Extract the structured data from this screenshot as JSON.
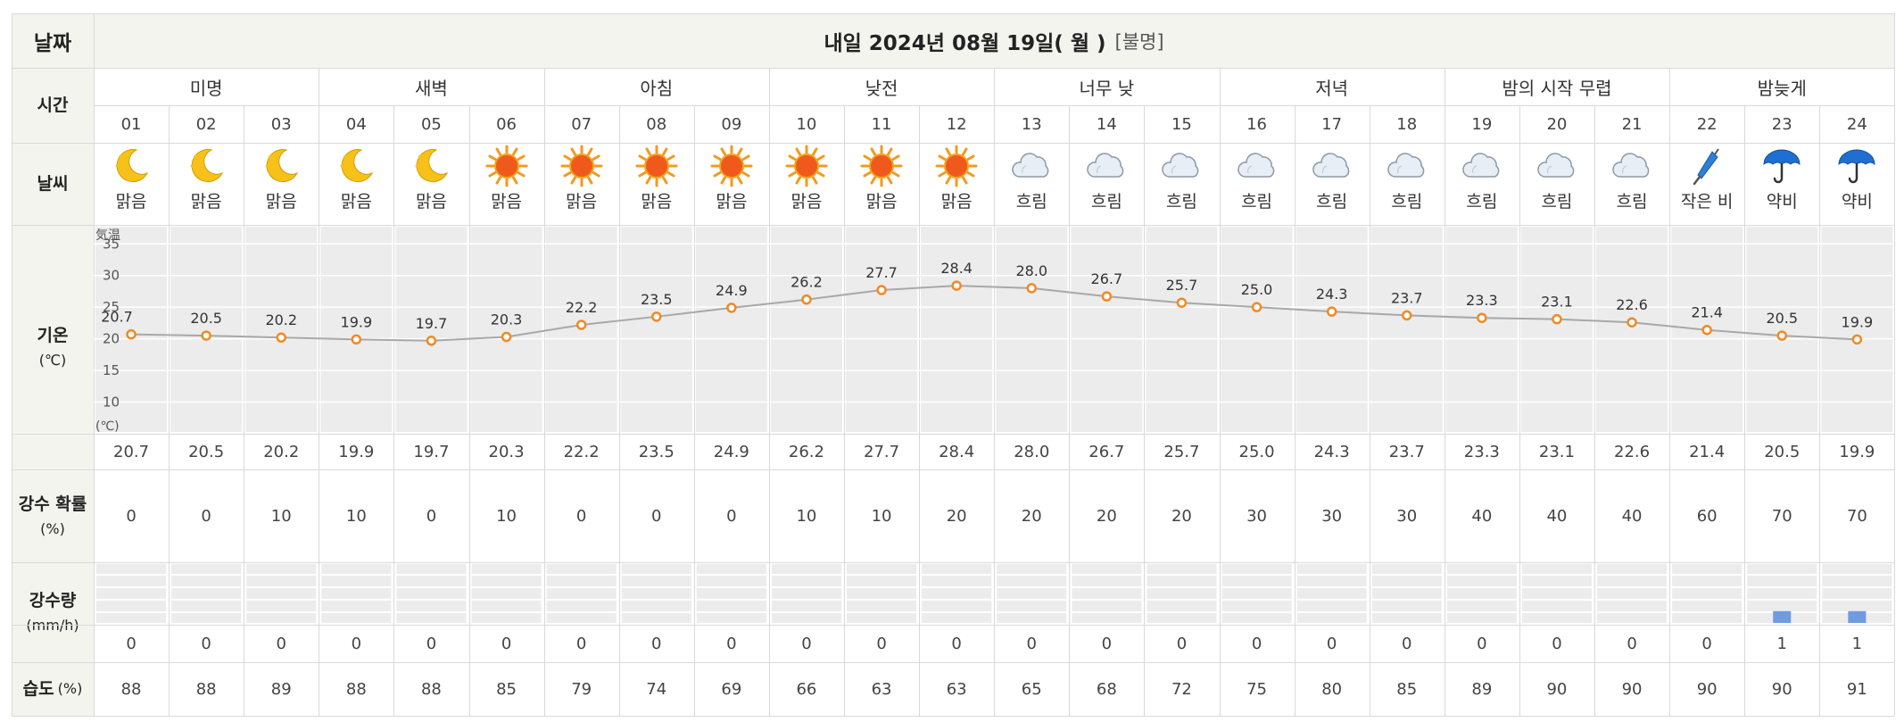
{
  "header": {
    "date_label": "날짜",
    "date_value": "내일 2024년 08월 19일( 월 )",
    "date_extra": "[불명]"
  },
  "row_labels": {
    "time": "시간",
    "weather": "날씨",
    "temp": "기온",
    "temp_unit": "(℃)",
    "pop": "강수 확률",
    "pop_unit": "(%)",
    "precip": "강수량",
    "precip_unit": "(mm/h)",
    "humidity": "습도",
    "humidity_unit": "(%)"
  },
  "periods": [
    "미명",
    "새벽",
    "아침",
    "낮전",
    "너무 낮",
    "저녁",
    "밤의 시작 무렵",
    "밤늦게"
  ],
  "hours": [
    "01",
    "02",
    "03",
    "04",
    "05",
    "06",
    "07",
    "08",
    "09",
    "10",
    "11",
    "12",
    "13",
    "14",
    "15",
    "16",
    "17",
    "18",
    "19",
    "20",
    "21",
    "22",
    "23",
    "24"
  ],
  "weather": [
    {
      "icon": "moon-icon",
      "text": "맑음"
    },
    {
      "icon": "moon-icon",
      "text": "맑음"
    },
    {
      "icon": "moon-icon",
      "text": "맑음"
    },
    {
      "icon": "moon-icon",
      "text": "맑음"
    },
    {
      "icon": "moon-icon",
      "text": "맑음"
    },
    {
      "icon": "sun-icon",
      "text": "맑음"
    },
    {
      "icon": "sun-icon",
      "text": "맑음"
    },
    {
      "icon": "sun-icon",
      "text": "맑음"
    },
    {
      "icon": "sun-icon",
      "text": "맑음"
    },
    {
      "icon": "sun-icon",
      "text": "맑음"
    },
    {
      "icon": "sun-icon",
      "text": "맑음"
    },
    {
      "icon": "sun-icon",
      "text": "맑음"
    },
    {
      "icon": "cloud-icon",
      "text": "흐림"
    },
    {
      "icon": "cloud-icon",
      "text": "흐림"
    },
    {
      "icon": "cloud-icon",
      "text": "흐림"
    },
    {
      "icon": "cloud-icon",
      "text": "흐림"
    },
    {
      "icon": "cloud-icon",
      "text": "흐림"
    },
    {
      "icon": "cloud-icon",
      "text": "흐림"
    },
    {
      "icon": "cloud-icon",
      "text": "흐림"
    },
    {
      "icon": "cloud-icon",
      "text": "흐림"
    },
    {
      "icon": "cloud-icon",
      "text": "흐림"
    },
    {
      "icon": "closed-umbrella-icon",
      "text": "작은 비"
    },
    {
      "icon": "umbrella-icon",
      "text": "약비"
    },
    {
      "icon": "umbrella-icon",
      "text": "약비"
    }
  ],
  "chart_data": {
    "type": "line",
    "x": [
      "01",
      "02",
      "03",
      "04",
      "05",
      "06",
      "07",
      "08",
      "09",
      "10",
      "11",
      "12",
      "13",
      "14",
      "15",
      "16",
      "17",
      "18",
      "19",
      "20",
      "21",
      "22",
      "23",
      "24"
    ],
    "series": [
      {
        "values": [
          20.7,
          20.5,
          20.2,
          19.9,
          19.7,
          20.3,
          22.2,
          23.5,
          24.9,
          26.2,
          27.7,
          28.4,
          28.0,
          26.7,
          25.7,
          25.0,
          24.3,
          23.7,
          23.3,
          23.1,
          22.6,
          21.4,
          20.5,
          19.9
        ]
      }
    ],
    "y_top_label": "気温",
    "y_bottom_label": "(℃)",
    "y_ticks": [
      10,
      15,
      20,
      25,
      30,
      35
    ],
    "ylim": [
      5,
      38
    ],
    "grid": true,
    "line_color": "#a8a8a8",
    "marker_color": "#f08a24"
  },
  "temp_values": [
    "20.7",
    "20.5",
    "20.2",
    "19.9",
    "19.7",
    "20.3",
    "22.2",
    "23.5",
    "24.9",
    "26.2",
    "27.7",
    "28.4",
    "28.0",
    "26.7",
    "25.7",
    "25.0",
    "24.3",
    "23.7",
    "23.3",
    "23.1",
    "22.6",
    "21.4",
    "20.5",
    "19.9"
  ],
  "pop": [
    "0",
    "0",
    "10",
    "10",
    "0",
    "10",
    "0",
    "0",
    "0",
    "10",
    "10",
    "20",
    "20",
    "20",
    "20",
    "30",
    "30",
    "30",
    "40",
    "40",
    "40",
    "60",
    "70",
    "70"
  ],
  "precip_chart": {
    "type": "bar",
    "values": [
      0,
      0,
      0,
      0,
      0,
      0,
      0,
      0,
      0,
      0,
      0,
      0,
      0,
      0,
      0,
      0,
      0,
      0,
      0,
      0,
      0,
      0,
      1,
      1
    ],
    "bar_color": "#6f9be0"
  },
  "precip": [
    "0",
    "0",
    "0",
    "0",
    "0",
    "0",
    "0",
    "0",
    "0",
    "0",
    "0",
    "0",
    "0",
    "0",
    "0",
    "0",
    "0",
    "0",
    "0",
    "0",
    "0",
    "0",
    "1",
    "1"
  ],
  "humidity": [
    "88",
    "88",
    "89",
    "88",
    "88",
    "85",
    "79",
    "74",
    "69",
    "66",
    "63",
    "63",
    "65",
    "68",
    "72",
    "75",
    "80",
    "85",
    "89",
    "90",
    "90",
    "90",
    "90",
    "91"
  ]
}
